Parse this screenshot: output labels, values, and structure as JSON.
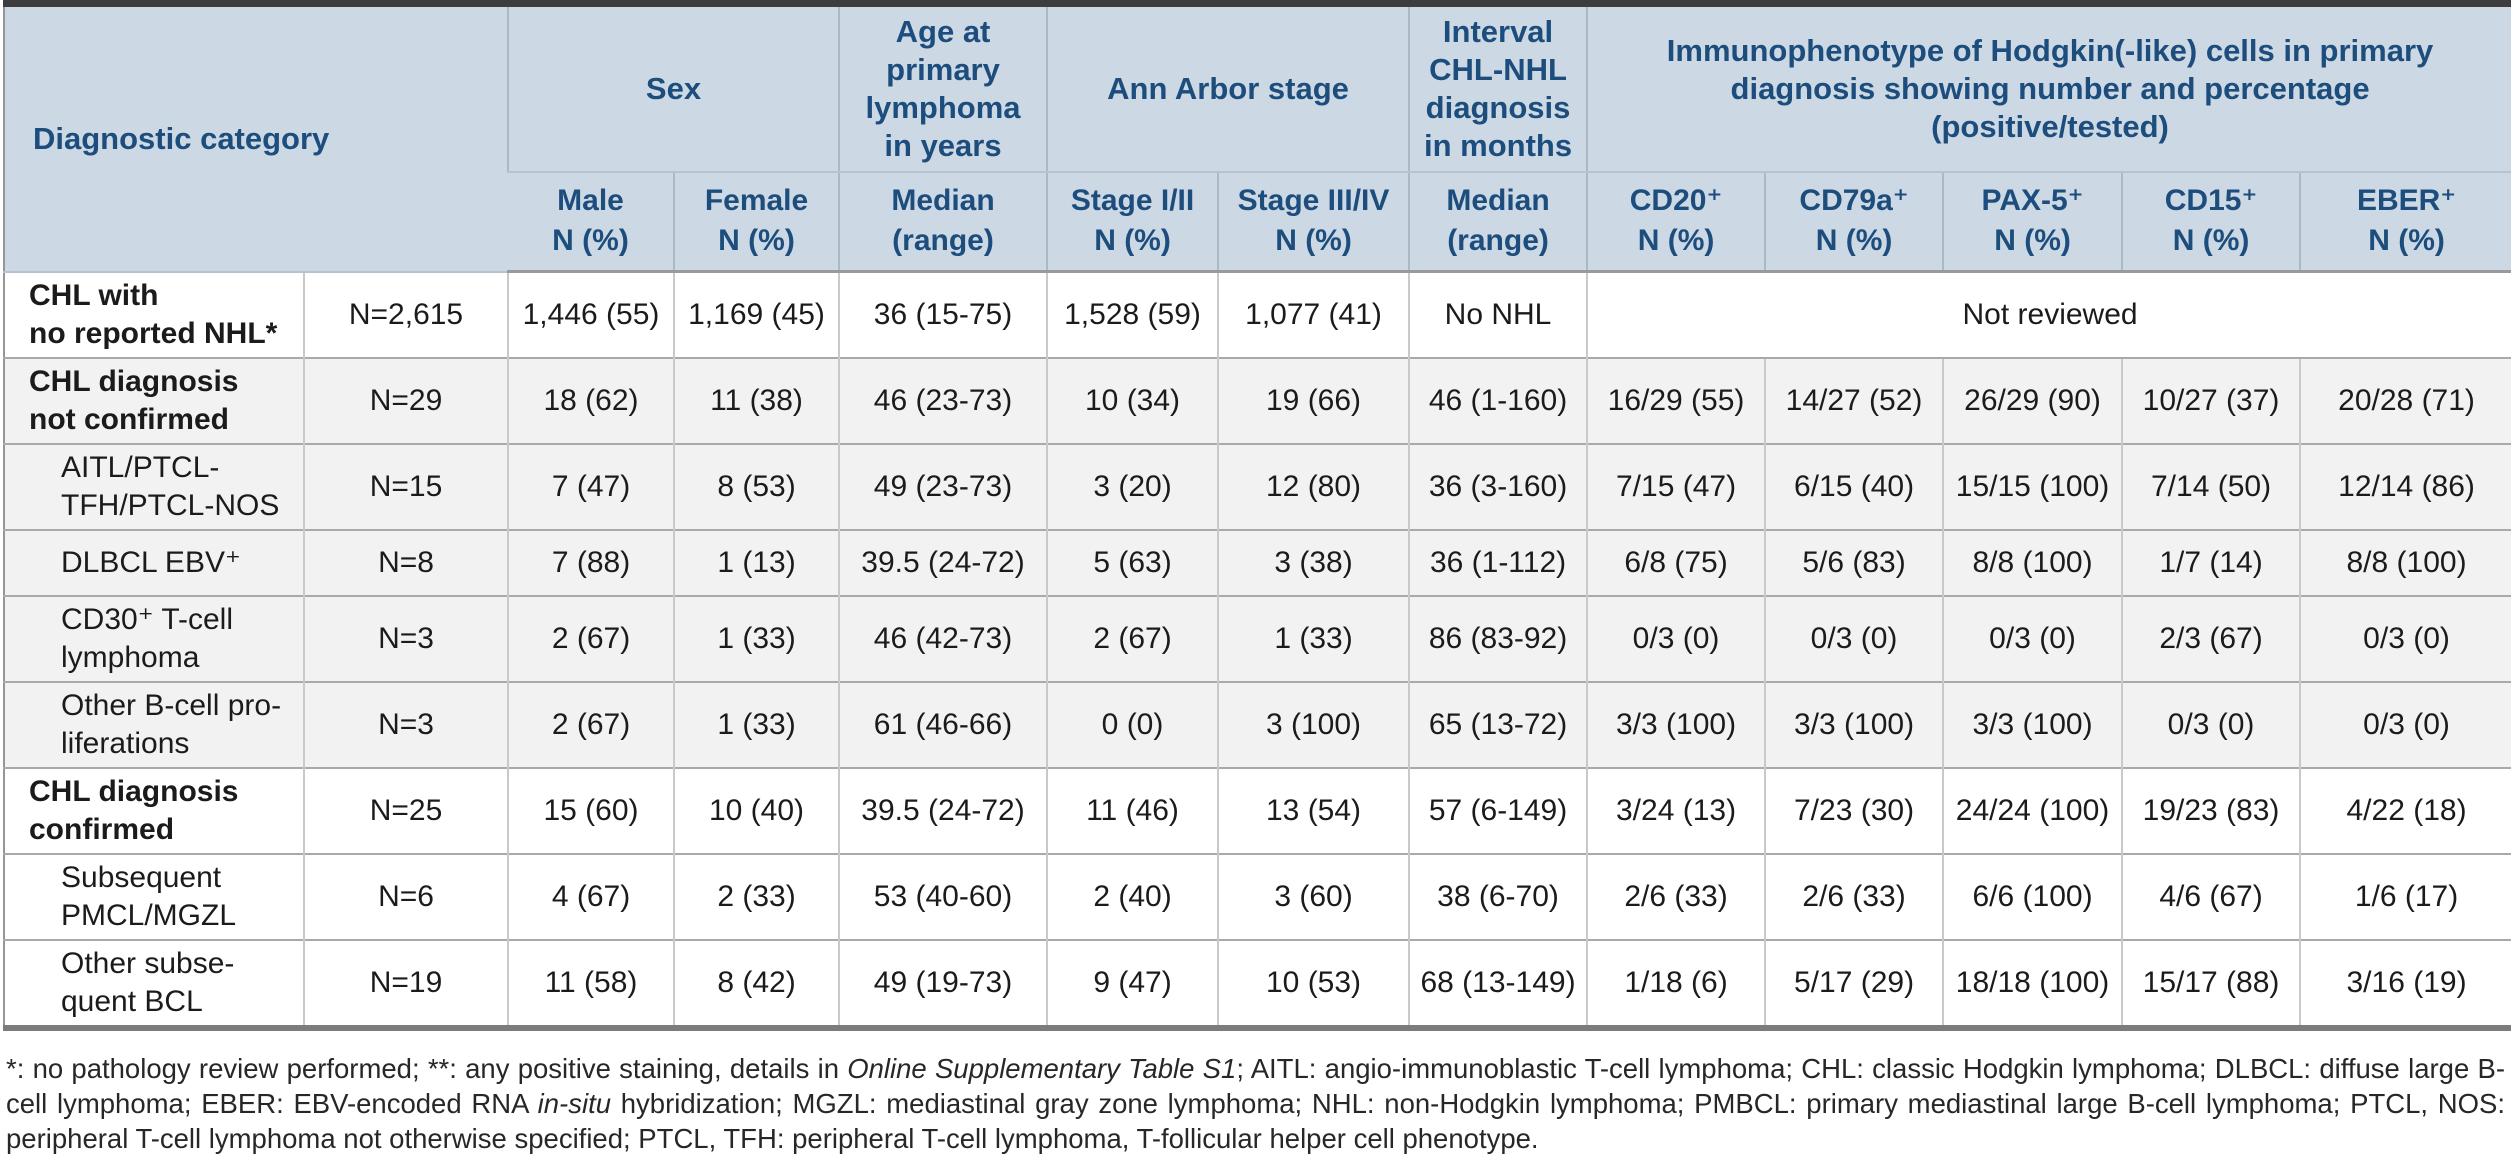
{
  "colors": {
    "header_bg": "#ccd8e4",
    "header_text": "#1c4d7c",
    "shaded_row_bg": "#f2f2f2",
    "body_text": "#1b1b1b",
    "border_dark": "#3d3d3d",
    "border_mid": "#a9a9a9"
  },
  "table": {
    "header": {
      "diagnostic_category": "Diagnostic category",
      "groups": [
        {
          "label": "Sex",
          "span": 2
        },
        {
          "label": "Age at\nprimary\nlymphoma\nin years",
          "span": 1
        },
        {
          "label": "Ann Arbor stage",
          "span": 2
        },
        {
          "label": "Interval\nCHL-NHL\ndiagnosis\nin months",
          "span": 1
        },
        {
          "label": "Immunophenotype of Hodgkin(-like) cells in primary\ndiagnosis showing number and percentage\n(positive/tested)",
          "span": 5
        }
      ],
      "subheaders": [
        "Male\nN (%)",
        "Female\nN (%)",
        "Median\n(range)",
        "Stage I/II\nN (%)",
        "Stage III/IV\nN (%)",
        "Median\n(range)",
        "CD20⁺\nN (%)",
        "CD79a⁺\nN (%)",
        "PAX-5⁺\nN (%)",
        "CD15⁺\nN (%)",
        "EBER⁺\nN (%)"
      ],
      "subheader_keys": [
        "male",
        "female",
        "age-median",
        "stage-1-2",
        "stage-3-4",
        "interval-median",
        "cd20",
        "cd79a",
        "pax5",
        "cd15",
        "eber"
      ]
    },
    "rows": [
      {
        "category": "CHL with\nno reported NHL*",
        "bold": true,
        "indent": false,
        "shaded": false,
        "n": "N=2,615",
        "cells": [
          "1,446 (55)",
          "1,169 (45)",
          "36 (15-75)",
          "1,528 (59)",
          "1,077 (41)",
          "No NHL"
        ],
        "span_note": "Not reviewed"
      },
      {
        "category": "CHL diagnosis\nnot confirmed",
        "bold": true,
        "indent": false,
        "shaded": true,
        "n": "N=29",
        "cells": [
          "18 (62)",
          "11 (38)",
          "46 (23-73)",
          "10 (34)",
          "19 (66)",
          "46 (1-160)",
          "16/29 (55)",
          "14/27 (52)",
          "26/29 (90)",
          "10/27 (37)",
          "20/28 (71)"
        ]
      },
      {
        "category": "AITL/PTCL-\nTFH/PTCL-NOS",
        "bold": false,
        "indent": true,
        "shaded": true,
        "n": "N=15",
        "cells": [
          "7 (47)",
          "8 (53)",
          "49 (23-73)",
          "3 (20)",
          "12 (80)",
          "36 (3-160)",
          "7/15 (47)",
          "6/15 (40)",
          "15/15 (100)",
          "7/14 (50)",
          "12/14 (86)"
        ]
      },
      {
        "category": "DLBCL EBV⁺",
        "bold": false,
        "indent": true,
        "shaded": true,
        "n": "N=8",
        "cells": [
          "7 (88)",
          "1 (13)",
          "39.5 (24-72)",
          "5 (63)",
          "3 (38)",
          "36 (1-112)",
          "6/8 (75)",
          "5/6 (83)",
          "8/8 (100)",
          "1/7 (14)",
          "8/8 (100)"
        ]
      },
      {
        "category": "CD30⁺ T-cell\nlymphoma",
        "bold": false,
        "indent": true,
        "shaded": true,
        "n": "N=3",
        "cells": [
          "2 (67)",
          "1 (33)",
          "46 (42-73)",
          "2 (67)",
          "1 (33)",
          "86 (83-92)",
          "0/3 (0)",
          "0/3 (0)",
          "0/3 (0)",
          "2/3 (67)",
          "0/3 (0)"
        ]
      },
      {
        "category": "Other B-cell pro-\nliferations",
        "bold": false,
        "indent": true,
        "shaded": true,
        "n": "N=3",
        "cells": [
          "2 (67)",
          "1 (33)",
          "61 (46-66)",
          "0 (0)",
          "3 (100)",
          "65 (13-72)",
          "3/3 (100)",
          "3/3 (100)",
          "3/3 (100)",
          "0/3 (0)",
          "0/3 (0)"
        ]
      },
      {
        "category": "CHL diagnosis\nconfirmed",
        "bold": true,
        "indent": false,
        "shaded": false,
        "n": "N=25",
        "cells": [
          "15 (60)",
          "10 (40)",
          "39.5 (24-72)",
          "11 (46)",
          "13 (54)",
          "57 (6-149)",
          "3/24 (13)",
          "7/23 (30)",
          "24/24 (100)",
          "19/23 (83)",
          "4/22 (18)"
        ]
      },
      {
        "category": "Subsequent\nPMCL/MGZL",
        "bold": false,
        "indent": true,
        "shaded": false,
        "n": "N=6",
        "cells": [
          "4 (67)",
          "2 (33)",
          "53 (40-60)",
          "2 (40)",
          "3 (60)",
          "38 (6-70)",
          "2/6 (33)",
          "2/6 (33)",
          "6/6 (100)",
          "4/6 (67)",
          "1/6 (17)"
        ]
      },
      {
        "category": "Other subse-\nquent BCL",
        "bold": false,
        "indent": true,
        "shaded": false,
        "n": "N=19",
        "cells": [
          "11 (58)",
          "8 (42)",
          "49 (19-73)",
          "9 (47)",
          "10 (53)",
          "68 (13-149)",
          "1/18 (6)",
          "5/17 (29)",
          "18/18 (100)",
          "15/17 (88)",
          "3/16 (19)"
        ]
      }
    ]
  },
  "footnote": {
    "segments": [
      {
        "text": "*: no pathology review performed; **: any positive staining, details in ",
        "italic": false
      },
      {
        "text": "Online Supplementary Table S1",
        "italic": true
      },
      {
        "text": "; AITL: angio-immunoblastic T-cell lymphoma; CHL: classic Hodgkin lymphoma; DLBCL: diffuse large B-cell lymphoma; EBER: EBV-encoded RNA ",
        "italic": false
      },
      {
        "text": "in-situ",
        "italic": true
      },
      {
        "text": " hybridization; MGZL: mediastinal gray zone lymphoma; NHL: non-Hodgkin lymphoma; PMBCL: primary mediastinal large B-cell lymphoma; PTCL, NOS: peripheral T-cell lymphoma not otherwise specified; PTCL, TFH: peripheral T-cell lymphoma, T-follicular helper cell phenotype.",
        "italic": false
      }
    ]
  }
}
